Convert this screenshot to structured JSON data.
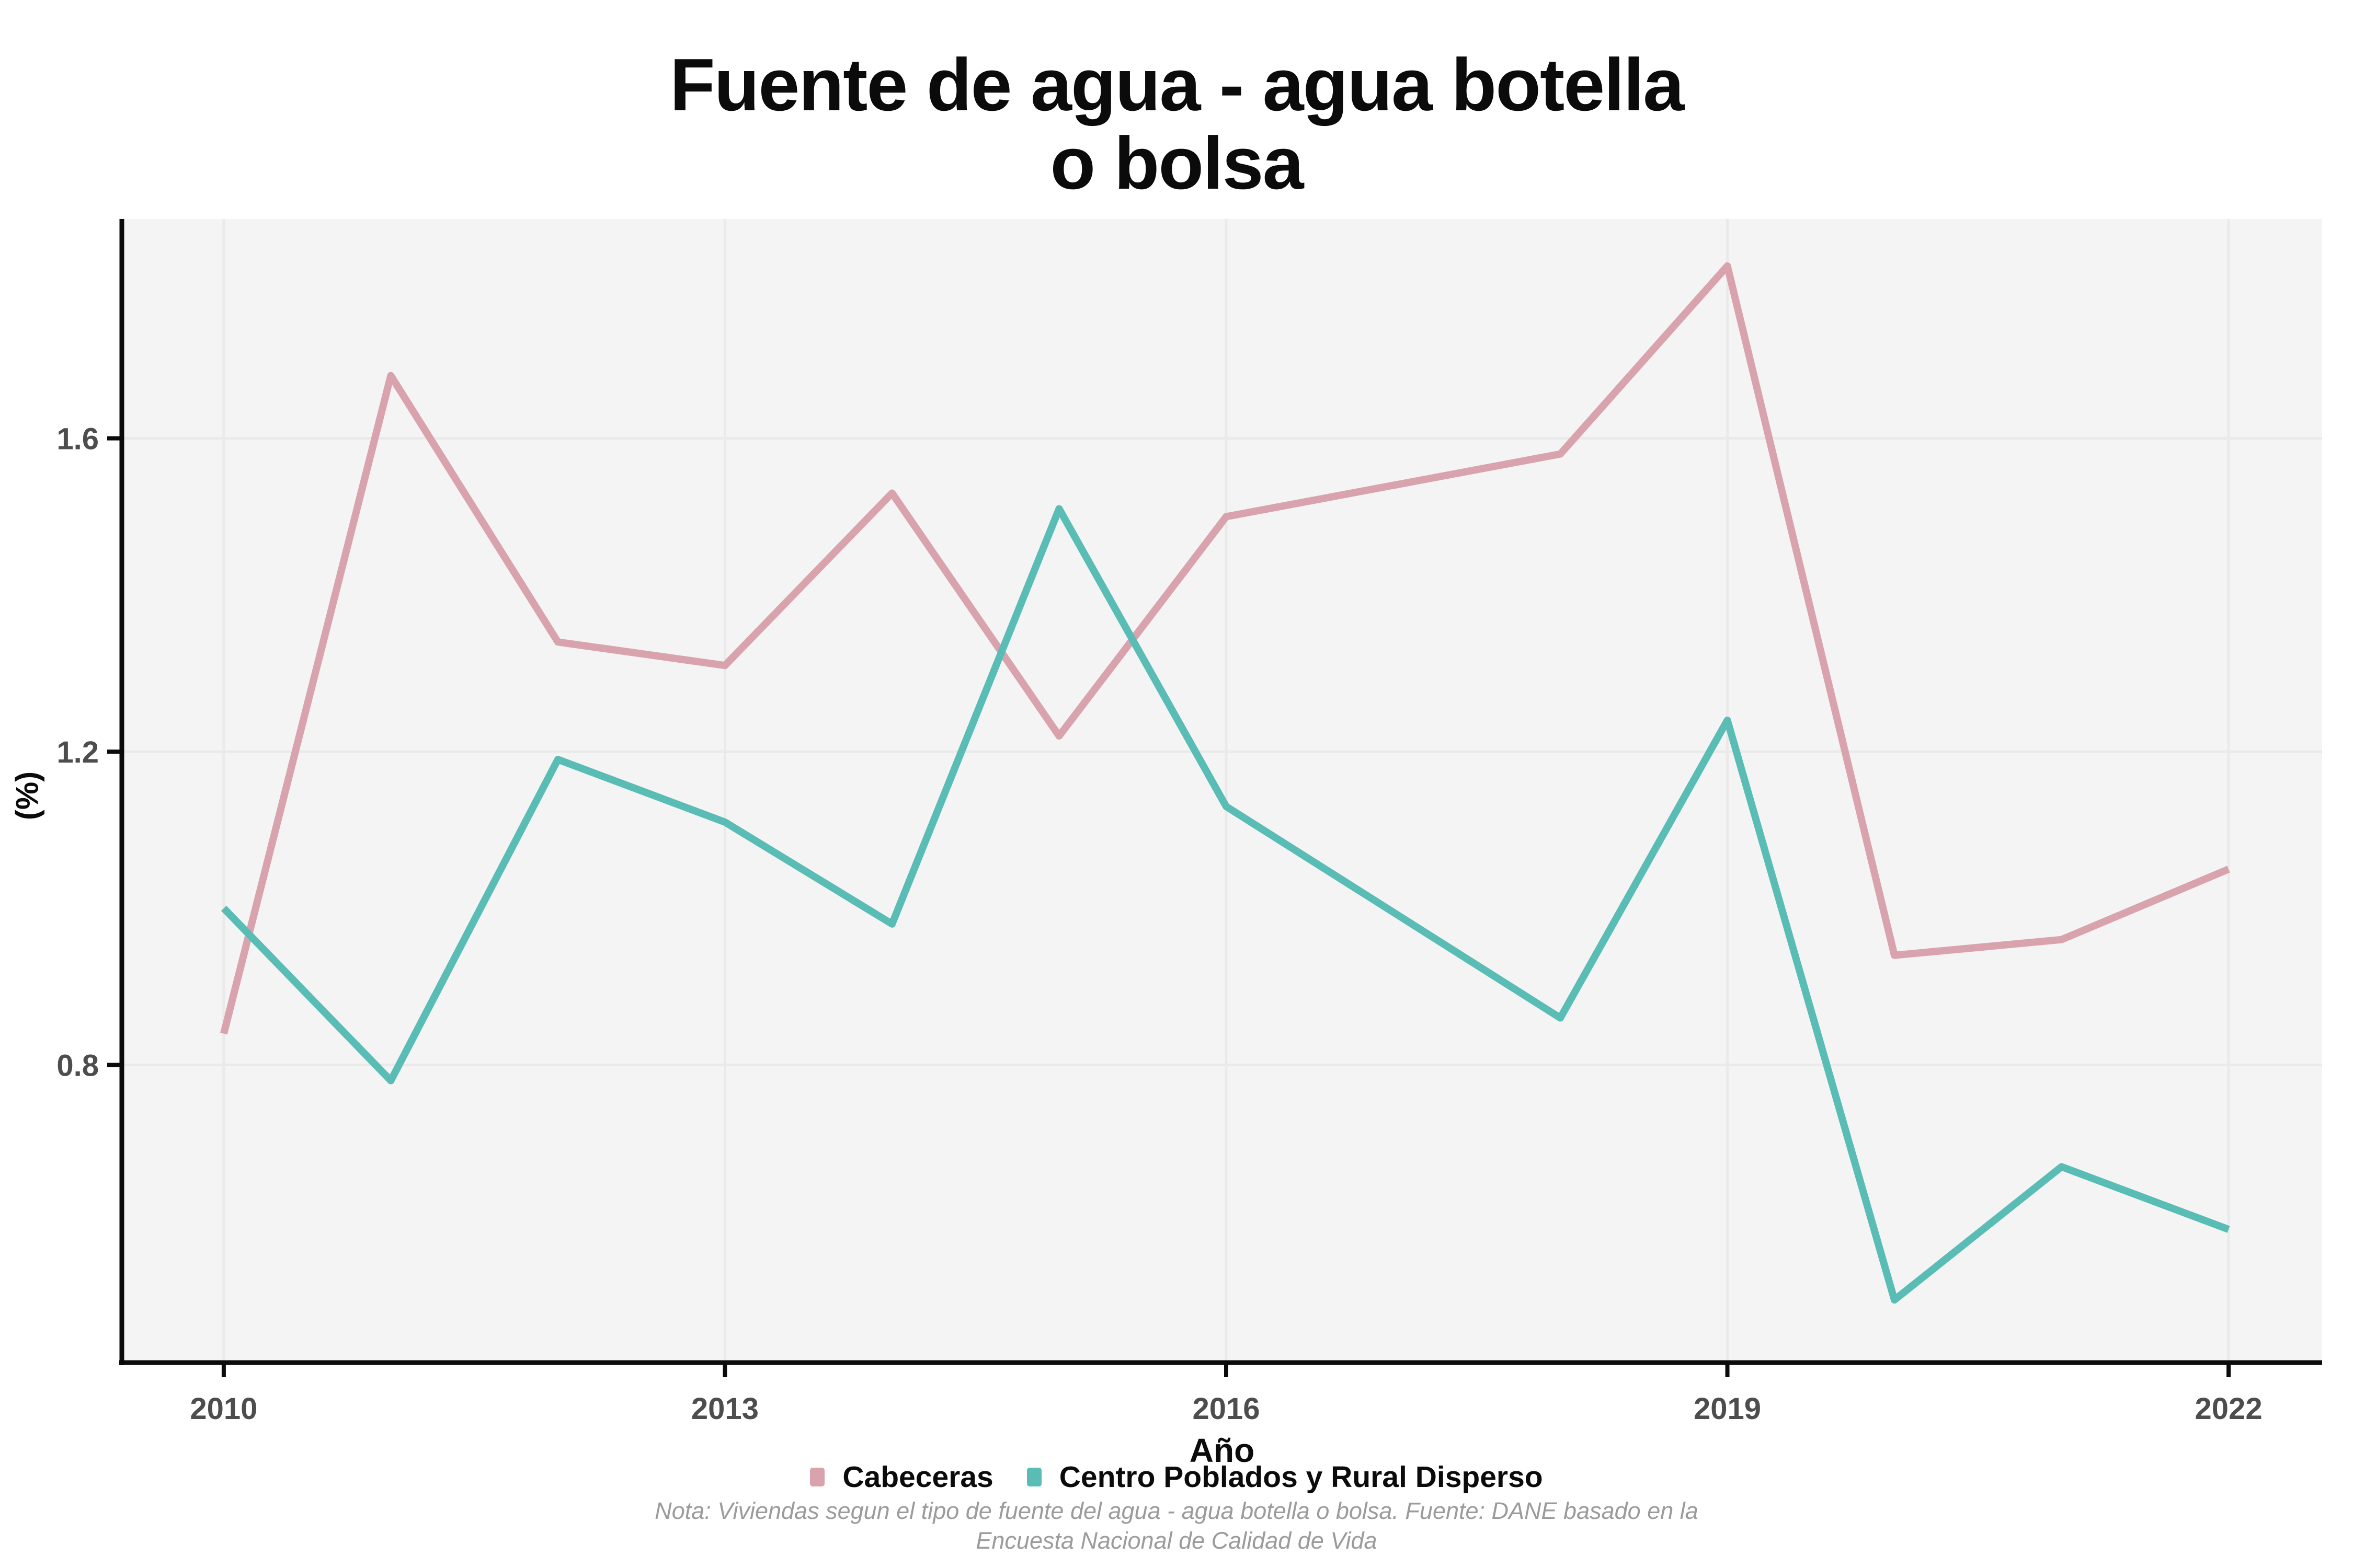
{
  "title": {
    "line1": "Fuente de agua - agua botella",
    "line2": "o bolsa"
  },
  "chart_data": {
    "type": "line",
    "x": [
      2010,
      2011,
      2012,
      2013,
      2014,
      2015,
      2016,
      2018,
      2019,
      2020,
      2021,
      2022
    ],
    "series": [
      {
        "name": "Cabeceras",
        "color": "#D9A3AE",
        "values": [
          0.84,
          1.68,
          1.34,
          1.31,
          1.53,
          1.22,
          1.5,
          1.58,
          1.82,
          0.94,
          0.96,
          1.05
        ]
      },
      {
        "name": "Centro Poblados y Rural Disperso",
        "color": "#5ABDB5",
        "values": [
          1.0,
          0.78,
          1.19,
          1.11,
          0.98,
          1.51,
          1.13,
          0.86,
          1.24,
          0.5,
          0.67,
          0.59
        ]
      }
    ],
    "title": "Fuente de agua - agua botella o bolsa",
    "xlabel": "Año",
    "ylabel": "(%)",
    "x_ticks": [
      2010,
      2013,
      2016,
      2019,
      2022
    ],
    "y_ticks": [
      0.8,
      1.2,
      1.6
    ],
    "xlim": [
      2009.39,
      2022.56
    ],
    "ylim": [
      0.42,
      1.88
    ],
    "grid": true,
    "legend_position": "bottom"
  },
  "footnote": {
    "line1": "Nota: Viviendas segun el tipo de fuente del agua - agua botella o bolsa. Fuente: DANE basado en la",
    "line2": "Encuesta Nacional de Calidad de Vida"
  },
  "colors": {
    "panel_background": "#F4F4F4",
    "gridline": "#EAEAEA",
    "axis_line": "#0b0b0b",
    "tick_label": "#4D4D4D",
    "footnote_text": "#9b9b9b",
    "series_cabeceras": "#D9A3AE",
    "series_centro_poblados": "#5ABDB5"
  }
}
